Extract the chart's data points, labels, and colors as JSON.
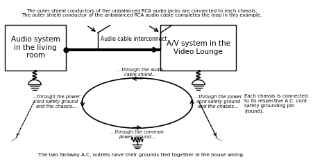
{
  "title_top1": "The outer shield conductors of the unbalanced RCA audio jacks are connected to each chassis.",
  "title_top2": "The outer shield conductor of the unbalanced RCA audio cable completes the loop in this example.",
  "title_bottom": "The two faraway A.C. outlets have their grounds tied together in the house wiring.",
  "box1_label": "Audio system\nin the living\nroom",
  "box2_label": "A/V system in the\nVideo Lounge",
  "cable_label": "Audio cable interconnect",
  "text_shield": "...through the audio\ncable shield...",
  "text_left_power": "...through the power\ncord safety ground\nand the chassis...",
  "text_right_power": "...through the power\ncord safety ground\nand the chassis...",
  "text_common": "...through the common\npower ground...",
  "text_right_note": "Each chassis is connected\nto its respective A.C. cord\nsafety grounding pin\n(round).",
  "bg_color": "#ffffff",
  "box_color": "#ffffff",
  "box_edge": "#000000",
  "text_color": "#000000"
}
